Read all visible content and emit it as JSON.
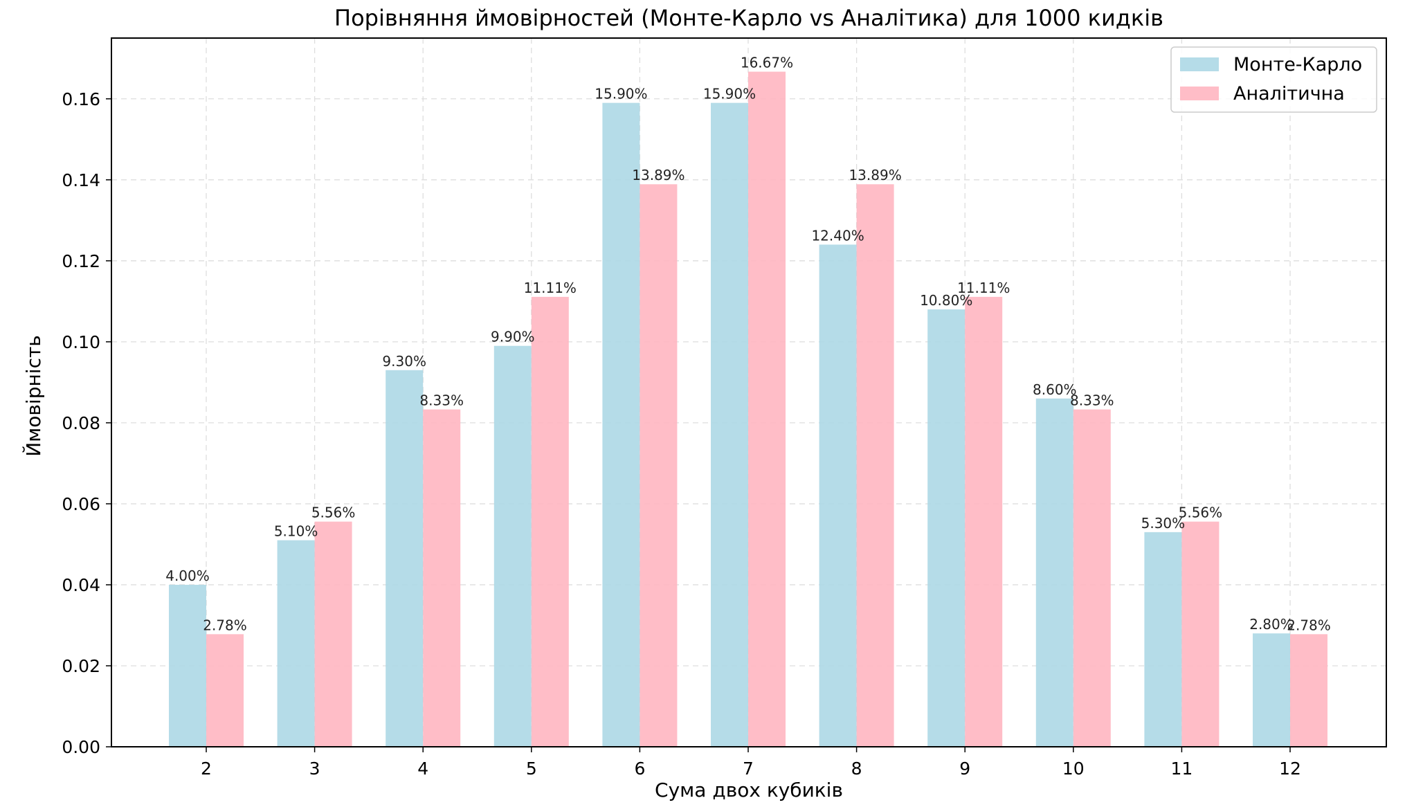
{
  "chart_data": {
    "type": "bar",
    "title": "Порівняння ймовірностей (Монте-Карло vs Аналітика) для 1000 кидків",
    "xlabel": "Сума двох кубиків",
    "ylabel": "Ймовірність",
    "categories": [
      "2",
      "3",
      "4",
      "5",
      "6",
      "7",
      "8",
      "9",
      "10",
      "11",
      "12"
    ],
    "series": [
      {
        "name": "Монте-Карло",
        "color": "#add8e6",
        "values": [
          0.04,
          0.051,
          0.093,
          0.099,
          0.159,
          0.159,
          0.124,
          0.108,
          0.086,
          0.053,
          0.028
        ],
        "labels": [
          "4.00%",
          "5.10%",
          "9.30%",
          "9.90%",
          "15.90%",
          "15.90%",
          "12.40%",
          "10.80%",
          "8.60%",
          "5.30%",
          "2.80%"
        ]
      },
      {
        "name": "Аналітична",
        "color": "#ffb6c1",
        "values": [
          0.0278,
          0.0556,
          0.0833,
          0.1111,
          0.1389,
          0.1667,
          0.1389,
          0.1111,
          0.0833,
          0.0556,
          0.0278
        ],
        "labels": [
          "2.78%",
          "5.56%",
          "8.33%",
          "11.11%",
          "13.89%",
          "16.67%",
          "13.89%",
          "11.11%",
          "8.33%",
          "5.56%",
          "2.78%"
        ]
      }
    ],
    "ylim": [
      0,
      0.175
    ],
    "yticks": [
      "0.00",
      "0.02",
      "0.04",
      "0.06",
      "0.08",
      "0.10",
      "0.12",
      "0.14",
      "0.16"
    ],
    "grid": true,
    "legend_position": "top-right"
  }
}
